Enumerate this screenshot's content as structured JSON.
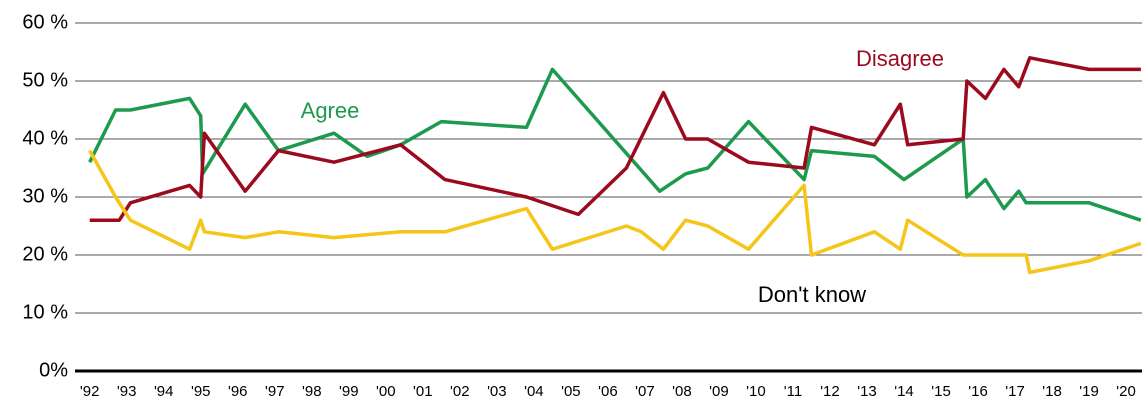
{
  "chart_data": {
    "type": "line",
    "xlim": [
      1991.9,
      2020.43
    ],
    "ylim": [
      0,
      60
    ],
    "yticks": [
      {
        "value": 0,
        "label": "0%"
      },
      {
        "value": 10,
        "label": "10 %"
      },
      {
        "value": 20,
        "label": "20 %"
      },
      {
        "value": 30,
        "label": "30 %"
      },
      {
        "value": 40,
        "label": "40 %"
      },
      {
        "value": 50,
        "label": "50 %"
      },
      {
        "value": 60,
        "label": "60 %"
      }
    ],
    "xticks": [
      {
        "value": 1992,
        "label": "'92"
      },
      {
        "value": 1993,
        "label": "'93"
      },
      {
        "value": 1994,
        "label": "'94"
      },
      {
        "value": 1995,
        "label": "'95"
      },
      {
        "value": 1996,
        "label": "'96"
      },
      {
        "value": 1997,
        "label": "'97"
      },
      {
        "value": 1998,
        "label": "'98"
      },
      {
        "value": 1999,
        "label": "'99"
      },
      {
        "value": 2000,
        "label": "'00"
      },
      {
        "value": 2001,
        "label": "'01"
      },
      {
        "value": 2002,
        "label": "'02"
      },
      {
        "value": 2003,
        "label": "'03"
      },
      {
        "value": 2004,
        "label": "'04"
      },
      {
        "value": 2005,
        "label": "'05"
      },
      {
        "value": 2006,
        "label": "'06"
      },
      {
        "value": 2007,
        "label": "'07"
      },
      {
        "value": 2008,
        "label": "'08"
      },
      {
        "value": 2009,
        "label": "'09"
      },
      {
        "value": 2010,
        "label": "'10"
      },
      {
        "value": 2011,
        "label": "'11"
      },
      {
        "value": 2012,
        "label": "'12"
      },
      {
        "value": 2013,
        "label": "'13"
      },
      {
        "value": 2014,
        "label": "'14"
      },
      {
        "value": 2015,
        "label": "'15"
      },
      {
        "value": 2016,
        "label": "'16"
      },
      {
        "value": 2017,
        "label": "'17"
      },
      {
        "value": 2018,
        "label": "'18"
      },
      {
        "value": 2019,
        "label": "'19"
      },
      {
        "value": 2020,
        "label": "'20"
      }
    ],
    "grid": true,
    "series": [
      {
        "name": "Agree",
        "color": "#1e9a4f",
        "label_color": "#1e9a4f",
        "x": [
          1992.0,
          1992.7,
          1993.1,
          1994.7,
          1995.0,
          1995.05,
          1996.2,
          1997.1,
          1998.6,
          1999.5,
          2000.4,
          2001.5,
          2003.8,
          2004.5,
          2007.4,
          2008.1,
          2008.7,
          2009.8,
          2011.3,
          2011.5,
          2013.2,
          2014.0,
          2015.6,
          2015.7,
          2016.2,
          2016.7,
          2017.1,
          2017.3,
          2019.0,
          2020.4
        ],
        "values": [
          36,
          45,
          45,
          47,
          44,
          34,
          46,
          38,
          41,
          37,
          39,
          43,
          42,
          52,
          31,
          34,
          35,
          43,
          33,
          38,
          37,
          33,
          40,
          30,
          33,
          28,
          31,
          29,
          29,
          26
        ]
      },
      {
        "name": "Disagree",
        "color": "#9b0a1e",
        "label_color": "#9b0a1e",
        "x": [
          1992.0,
          1992.8,
          1993.1,
          1994.7,
          1995.0,
          1995.1,
          1996.2,
          1997.1,
          1998.6,
          2000.4,
          2001.6,
          2003.8,
          2005.2,
          2006.5,
          2007.5,
          2008.1,
          2008.7,
          2009.8,
          2011.3,
          2011.5,
          2013.2,
          2013.9,
          2014.1,
          2015.6,
          2015.7,
          2016.2,
          2016.7,
          2017.1,
          2017.4,
          2019.0,
          2020.4
        ],
        "values": [
          26,
          26,
          29,
          32,
          30,
          41,
          31,
          38,
          36,
          39,
          33,
          30,
          27,
          35,
          48,
          40,
          40,
          36,
          35,
          42,
          39,
          46,
          39,
          40,
          50,
          47,
          52,
          49,
          54,
          52,
          52
        ]
      },
      {
        "name": "Don't know",
        "color": "#f5c518",
        "label_color": "#000000",
        "x": [
          1992.0,
          1992.7,
          1993.1,
          1994.7,
          1995.0,
          1995.1,
          1996.2,
          1997.1,
          1998.6,
          2000.4,
          2001.6,
          2003.8,
          2004.5,
          2006.5,
          2006.9,
          2007.5,
          2008.1,
          2008.7,
          2009.8,
          2011.3,
          2011.5,
          2013.2,
          2013.9,
          2014.1,
          2015.6,
          2017.3,
          2017.4,
          2019.0,
          2020.4
        ],
        "values": [
          38,
          30,
          26,
          21,
          26,
          24,
          23,
          24,
          23,
          24,
          24,
          28,
          21,
          25,
          24,
          21,
          26,
          25,
          21,
          32,
          20,
          24,
          21,
          26,
          20,
          20,
          17,
          19,
          22
        ]
      }
    ]
  }
}
